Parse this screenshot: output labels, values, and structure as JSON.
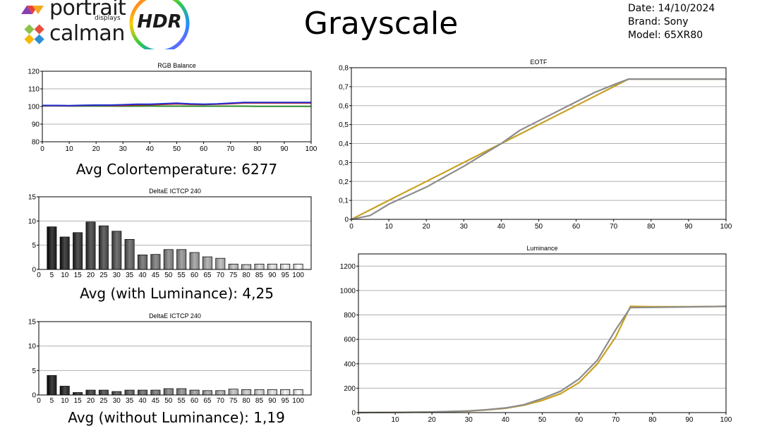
{
  "header": {
    "title": "Grayscale",
    "logo_portrait": "portrait",
    "logo_displays": "displays",
    "logo_calman": "calman",
    "badge": "HDR",
    "date": "Date: 14/10/2024",
    "brand": "Brand: Sony",
    "model": "Model: 65XR80"
  },
  "captions": {
    "rgb": "Avg Colortemperature: 6277",
    "de1": "Avg (with Luminance): 4,25",
    "de2": "Avg (without Luminance): 1,19"
  },
  "chart_data": [
    {
      "id": "rgb",
      "type": "line",
      "title": "RGB Balance",
      "x": [
        0,
        5,
        10,
        15,
        20,
        25,
        30,
        35,
        40,
        45,
        50,
        55,
        60,
        65,
        70,
        75,
        80,
        85,
        90,
        95,
        100
      ],
      "xticks": [
        0,
        10,
        20,
        30,
        40,
        50,
        60,
        70,
        80,
        90,
        100
      ],
      "yticks": [
        80,
        90,
        100,
        110,
        120
      ],
      "xlim": [
        0,
        100
      ],
      "ylim": [
        80,
        120
      ],
      "grid": true,
      "series": [
        {
          "color": "#2a8a2a",
          "values": [
            100.5,
            100.5,
            100.3,
            100.3,
            100.3,
            100.3,
            100.2,
            100.2,
            100.3,
            100.2,
            100.2,
            100.2,
            100.2,
            100.2,
            100.2,
            100.2,
            100.1,
            100.1,
            100.1,
            100.1,
            100.1
          ]
        },
        {
          "color": "#cc2222",
          "values": [
            100.5,
            100.5,
            100.4,
            100.6,
            100.7,
            100.6,
            100.6,
            100.9,
            101.0,
            101.2,
            101.5,
            101.2,
            101.1,
            101.3,
            101.6,
            102.0,
            102.0,
            102.0,
            102.0,
            102.0,
            102.0
          ]
        },
        {
          "color": "#1f2fd0",
          "values": [
            100.6,
            100.6,
            100.5,
            100.7,
            100.8,
            100.8,
            101.0,
            101.3,
            101.3,
            101.6,
            101.9,
            101.5,
            101.3,
            101.5,
            101.9,
            102.3,
            102.3,
            102.3,
            102.3,
            102.3,
            102.3
          ]
        }
      ]
    },
    {
      "id": "de1",
      "type": "bar",
      "title": "DeltaE ICTCP 240",
      "categories": [
        "5",
        "10",
        "15",
        "20",
        "25",
        "30",
        "35",
        "40",
        "45",
        "50",
        "55",
        "60",
        "65",
        "70",
        "75",
        "80",
        "85",
        "90",
        "95",
        "100"
      ],
      "values": [
        8.8,
        6.7,
        7.6,
        9.8,
        9.0,
        7.9,
        6.2,
        3.0,
        3.1,
        4.1,
        4.1,
        3.5,
        2.6,
        2.3,
        1.1,
        1.0,
        1.1,
        1.1,
        1.1,
        1.1
      ],
      "yticks": [
        0,
        5,
        10,
        15
      ],
      "ylim": [
        0,
        15
      ],
      "grid": true
    },
    {
      "id": "de2",
      "type": "bar",
      "title": "DeltaE ICTCP 240",
      "categories": [
        "5",
        "10",
        "15",
        "20",
        "25",
        "30",
        "35",
        "40",
        "45",
        "50",
        "55",
        "60",
        "65",
        "70",
        "75",
        "80",
        "85",
        "90",
        "95",
        "100"
      ],
      "values": [
        4.0,
        1.8,
        0.5,
        1.0,
        1.0,
        0.7,
        1.0,
        1.0,
        1.0,
        1.3,
        1.3,
        1.0,
        0.9,
        0.9,
        1.2,
        1.1,
        1.1,
        1.1,
        1.1,
        1.1
      ],
      "yticks": [
        0,
        5,
        10,
        15
      ],
      "ylim": [
        0,
        15
      ],
      "grid": true
    },
    {
      "id": "eotf",
      "type": "line",
      "title": "EOTF",
      "x": [
        0,
        5,
        10,
        15,
        20,
        25,
        30,
        35,
        40,
        45,
        50,
        55,
        60,
        65,
        70,
        74,
        80,
        85,
        90,
        95,
        100
      ],
      "xticks": [
        0,
        10,
        20,
        30,
        40,
        50,
        60,
        70,
        80,
        90,
        100
      ],
      "yticks": [
        "0",
        "0,1",
        "0,2",
        "0,3",
        "0,4",
        "0,5",
        "0,6",
        "0,7",
        "0,8"
      ],
      "xlim": [
        0,
        100
      ],
      "ylim": [
        0,
        0.8
      ],
      "grid": true,
      "series": [
        {
          "color": "#c8a020",
          "values": [
            0,
            0.05,
            0.1,
            0.15,
            0.2,
            0.25,
            0.3,
            0.35,
            0.4,
            0.45,
            0.5,
            0.55,
            0.6,
            0.65,
            0.7,
            0.74,
            0.74,
            0.74,
            0.74,
            0.74,
            0.74
          ]
        },
        {
          "color": "#8c8c8c",
          "values": [
            0,
            0.02,
            0.08,
            0.125,
            0.17,
            0.225,
            0.28,
            0.34,
            0.4,
            0.47,
            0.52,
            0.57,
            0.62,
            0.67,
            0.71,
            0.74,
            0.74,
            0.74,
            0.74,
            0.74,
            0.74
          ]
        }
      ]
    },
    {
      "id": "lum",
      "type": "line",
      "title": "Luminance",
      "x": [
        0,
        10,
        20,
        30,
        35,
        40,
        45,
        50,
        55,
        60,
        65,
        70,
        74,
        80,
        90,
        100
      ],
      "xticks": [
        0,
        10,
        20,
        30,
        40,
        50,
        60,
        70,
        80,
        90,
        100
      ],
      "yticks": [
        0,
        200,
        400,
        600,
        800,
        1000,
        1200
      ],
      "xlim": [
        0,
        100
      ],
      "ylim": [
        0,
        1300
      ],
      "grid": true,
      "series": [
        {
          "color": "#c8a020",
          "values": [
            0,
            2,
            5,
            12,
            22,
            35,
            60,
            100,
            155,
            245,
            400,
            620,
            870,
            868,
            868,
            870
          ]
        },
        {
          "color": "#8c8c8c",
          "values": [
            0,
            2,
            5,
            14,
            24,
            38,
            65,
            115,
            175,
            275,
            430,
            680,
            860,
            862,
            866,
            870
          ]
        }
      ]
    }
  ]
}
